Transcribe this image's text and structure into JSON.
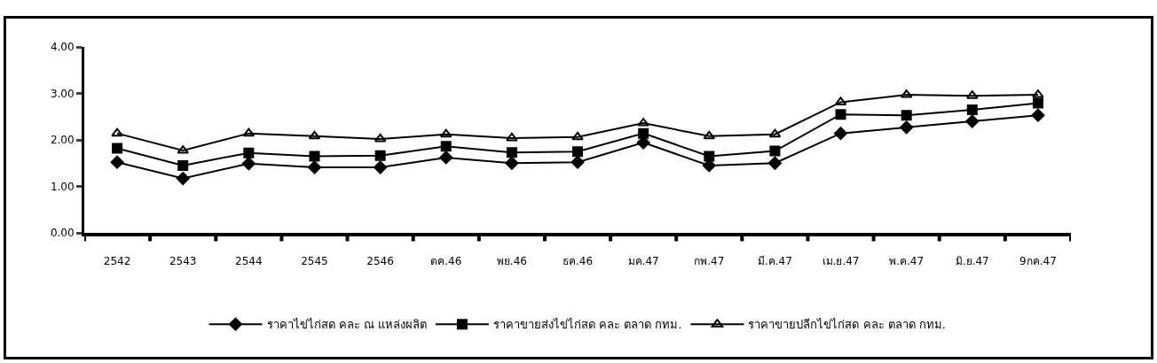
{
  "chart_data": {
    "type": "line",
    "categories": [
      "2542",
      "2543",
      "2544",
      "2545",
      "2546",
      "ตค.46",
      "พย.46",
      "ธค.46",
      "มค.47",
      "กพ.47",
      "มี.ค.47",
      "เม.ย.47",
      "พ.ค.47",
      "มิ.ย.47",
      "9กค.47"
    ],
    "series": [
      {
        "name": "ราคาไข่ไก่สด คละ ณ แหล่งผลิต",
        "color": "#000000",
        "marker": "diamond",
        "values": [
          1.52,
          1.17,
          1.49,
          1.41,
          1.41,
          1.62,
          1.5,
          1.52,
          1.94,
          1.45,
          1.5,
          2.14,
          2.27,
          2.4,
          2.53
        ]
      },
      {
        "name": "ราคาขายส่งไข่ไก่สด คละ ตลาด กทม.",
        "color": "#000000",
        "marker": "square",
        "values": [
          1.82,
          1.45,
          1.72,
          1.65,
          1.66,
          1.86,
          1.73,
          1.75,
          2.14,
          1.65,
          1.76,
          2.55,
          2.53,
          2.65,
          2.79
        ]
      },
      {
        "name": "ราคาขายปลีกไข่ไก่สด คละ ตลาด กทม.",
        "color": "#000000",
        "marker": "triangle",
        "values": [
          2.14,
          1.77,
          2.14,
          2.08,
          2.02,
          2.12,
          2.04,
          2.06,
          2.36,
          2.08,
          2.12,
          2.81,
          2.97,
          2.95,
          2.97
        ]
      }
    ],
    "ylim": [
      0,
      4
    ],
    "yticks": [
      {
        "value": 0,
        "label": "0.00"
      },
      {
        "value": 1,
        "label": "1.00"
      },
      {
        "value": 2,
        "label": "2.00"
      },
      {
        "value": 3,
        "label": "3.00"
      },
      {
        "value": 4,
        "label": "4.00"
      }
    ],
    "grid": false,
    "legend": "bottom",
    "line_style": "solid"
  }
}
